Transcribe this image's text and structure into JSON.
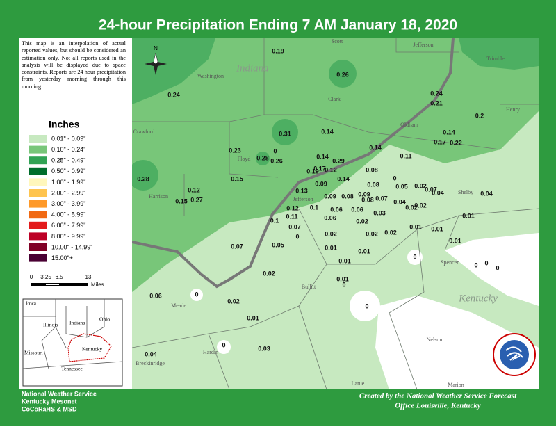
{
  "header": {
    "title": "24-hour Precipitation Ending 7 AM  January 18, 2020"
  },
  "note": "This map is an interpolation of actual reported values, but should be considered an estimation only. Not all reports used in the analysis will be displayed due to space constraints. Reports are 24 hour precipitation from yesterday morning through this morning.",
  "legend": {
    "title": "Inches",
    "items": [
      {
        "label": "0.01\" - 0.09\"",
        "color": "#c7e9c0"
      },
      {
        "label": "0.10\" - 0.24\"",
        "color": "#78c679"
      },
      {
        "label": "0.25\" - 0.49\"",
        "color": "#31a354"
      },
      {
        "label": "0.50\" - 0.99\"",
        "color": "#006d2c"
      },
      {
        "label": "1.00\" - 1.99\"",
        "color": "#fff7bc"
      },
      {
        "label": "2.00\" - 2.99\"",
        "color": "#fec44f"
      },
      {
        "label": "3.00\" - 3.99\"",
        "color": "#fe9929"
      },
      {
        "label": "4.00\" - 5.99\"",
        "color": "#f16913"
      },
      {
        "label": "6.00\" - 7.99\"",
        "color": "#e31a1c"
      },
      {
        "label": "8.00\" - 9.99\"",
        "color": "#bd0026"
      },
      {
        "label": "10.00\" - 14.99\"",
        "color": "#800026"
      },
      {
        "label": "15.00\"+",
        "color": "#4a0033"
      }
    ]
  },
  "scale": {
    "ticks": [
      "0",
      "3.25",
      "6.5",
      "13"
    ],
    "unit": "Miles"
  },
  "inset": {
    "labels": [
      "Iowa",
      "Illinois",
      "Indiana",
      "Ohio",
      "Missouri",
      "Kentucky",
      "Tennessee"
    ]
  },
  "compass": "N",
  "map": {
    "regions": [
      "Indiana",
      "Kentucky"
    ],
    "places": [
      "Scott",
      "Jefferson",
      "Washington",
      "Clark",
      "Trimble",
      "Henry",
      "Oldham",
      "Crawford",
      "Floyd",
      "Harrison",
      "Jefferson",
      "Shelby",
      "Spencer",
      "Bullitt",
      "Meade",
      "Nelson",
      "Hardin",
      "Breckinridge",
      "Larue",
      "Marion"
    ],
    "observations": [
      "0.19",
      "0.26",
      "0.24",
      "0.24",
      "0.21",
      "0.2",
      "0.31",
      "0.14",
      "0.14",
      "0.17",
      "0.22",
      "0.14",
      "0.11",
      "0.23",
      "0",
      "0.28",
      "0.26",
      "0.14",
      "0.29",
      "0.17",
      "0.12",
      "0.19",
      "0.08",
      "0",
      "0.15",
      "0.28",
      "0.09",
      "0.14",
      "0.08",
      "0.05",
      "0.02",
      "0.07",
      "0.04",
      "0.04",
      "0.12",
      "0.13",
      "0.15",
      "0.27",
      "0.09",
      "0.08",
      "0.09",
      "0.08",
      "0.07",
      "0.04",
      "0.02",
      "0.02",
      "0.12",
      "0.1",
      "0.06",
      "0.06",
      "0.03",
      "0.11",
      "0.06",
      "0.02",
      "0.01",
      "0.1",
      "0.07",
      "0",
      "0.02",
      "0.02",
      "0.02",
      "0.01",
      "0.01",
      "0.07",
      "0.05",
      "0.01",
      "0.01",
      "0.01",
      "0",
      "0.01",
      "0",
      "0",
      "0",
      "0.02",
      "0.01",
      "0",
      "0.06",
      "0.02",
      "0",
      "0.01",
      "0",
      "0.04",
      "0.03",
      "0"
    ]
  },
  "footer": {
    "left": [
      "National Weather Service",
      "Kentucky Mesonet",
      "CoCoRaHS & MSD"
    ],
    "right": [
      "Created by the National Weather Service Forecast",
      "Office Louisville, Kentucky"
    ]
  }
}
